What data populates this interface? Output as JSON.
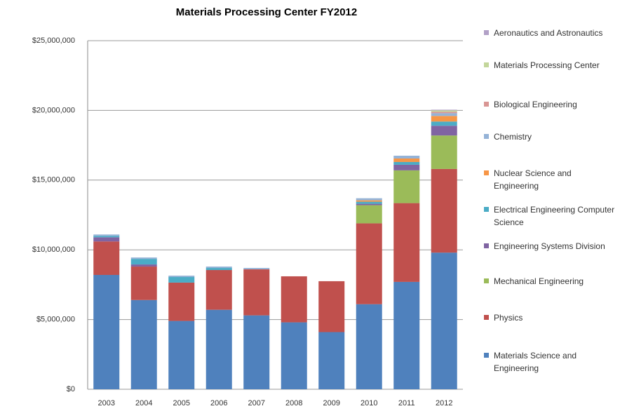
{
  "chart_data": {
    "type": "stacked_bar",
    "title": "Materials Processing Center FY2012",
    "categories": [
      "2003",
      "2004",
      "2005",
      "2006",
      "2007",
      "2008",
      "2009",
      "2010",
      "2011",
      "2012"
    ],
    "series": [
      {
        "name": "Materials Science and Engineering",
        "color": "#4f81bd",
        "values": [
          8200000,
          6400000,
          4900000,
          5700000,
          5300000,
          4800000,
          4100000,
          6100000,
          7700000,
          9800000
        ]
      },
      {
        "name": "Physics",
        "color": "#c0504d",
        "values": [
          2400000,
          2400000,
          2750000,
          2850000,
          3300000,
          3300000,
          3650000,
          5800000,
          5650000,
          6000000
        ]
      },
      {
        "name": "Mechanical Engineering",
        "color": "#9bbb59",
        "values": [
          0,
          0,
          0,
          0,
          0,
          0,
          0,
          1300000,
          2350000,
          2400000
        ]
      },
      {
        "name": "Engineering Systems Division",
        "color": "#8064a2",
        "values": [
          300000,
          150000,
          0,
          0,
          0,
          0,
          0,
          100000,
          400000,
          700000
        ]
      },
      {
        "name": "Electrical Engineering Computer Science",
        "color": "#4bacc6",
        "values": [
          100000,
          400000,
          400000,
          150000,
          0,
          0,
          0,
          150000,
          200000,
          300000
        ]
      },
      {
        "name": "Nuclear Science and Engineering",
        "color": "#f79646",
        "values": [
          0,
          0,
          0,
          0,
          0,
          0,
          0,
          100000,
          250000,
          400000
        ]
      },
      {
        "name": "Chemistry",
        "color": "#95b3d7",
        "values": [
          100000,
          100000,
          100000,
          100000,
          100000,
          0,
          0,
          150000,
          200000,
          200000
        ]
      },
      {
        "name": "Biological Engineering",
        "color": "#d99694",
        "values": [
          0,
          0,
          0,
          0,
          0,
          0,
          0,
          0,
          0,
          100000
        ]
      },
      {
        "name": "Materials Processing Center",
        "color": "#c3d69b",
        "values": [
          0,
          0,
          0,
          0,
          0,
          0,
          0,
          0,
          0,
          100000
        ]
      },
      {
        "name": "Aeronautics and Astronautics",
        "color": "#b2a1c7",
        "values": [
          0,
          0,
          0,
          0,
          0,
          0,
          0,
          0,
          0,
          50000
        ]
      }
    ],
    "ylim": [
      0,
      25000000
    ],
    "yticks": [
      {
        "value": 0,
        "label": "$0"
      },
      {
        "value": 5000000,
        "label": "$5,000,000"
      },
      {
        "value": 10000000,
        "label": "$10,000,000"
      },
      {
        "value": 15000000,
        "label": "$15,000,000"
      },
      {
        "value": 20000000,
        "label": "$20,000,000"
      },
      {
        "value": 25000000,
        "label": "$25,000,000"
      }
    ],
    "grid": true
  }
}
